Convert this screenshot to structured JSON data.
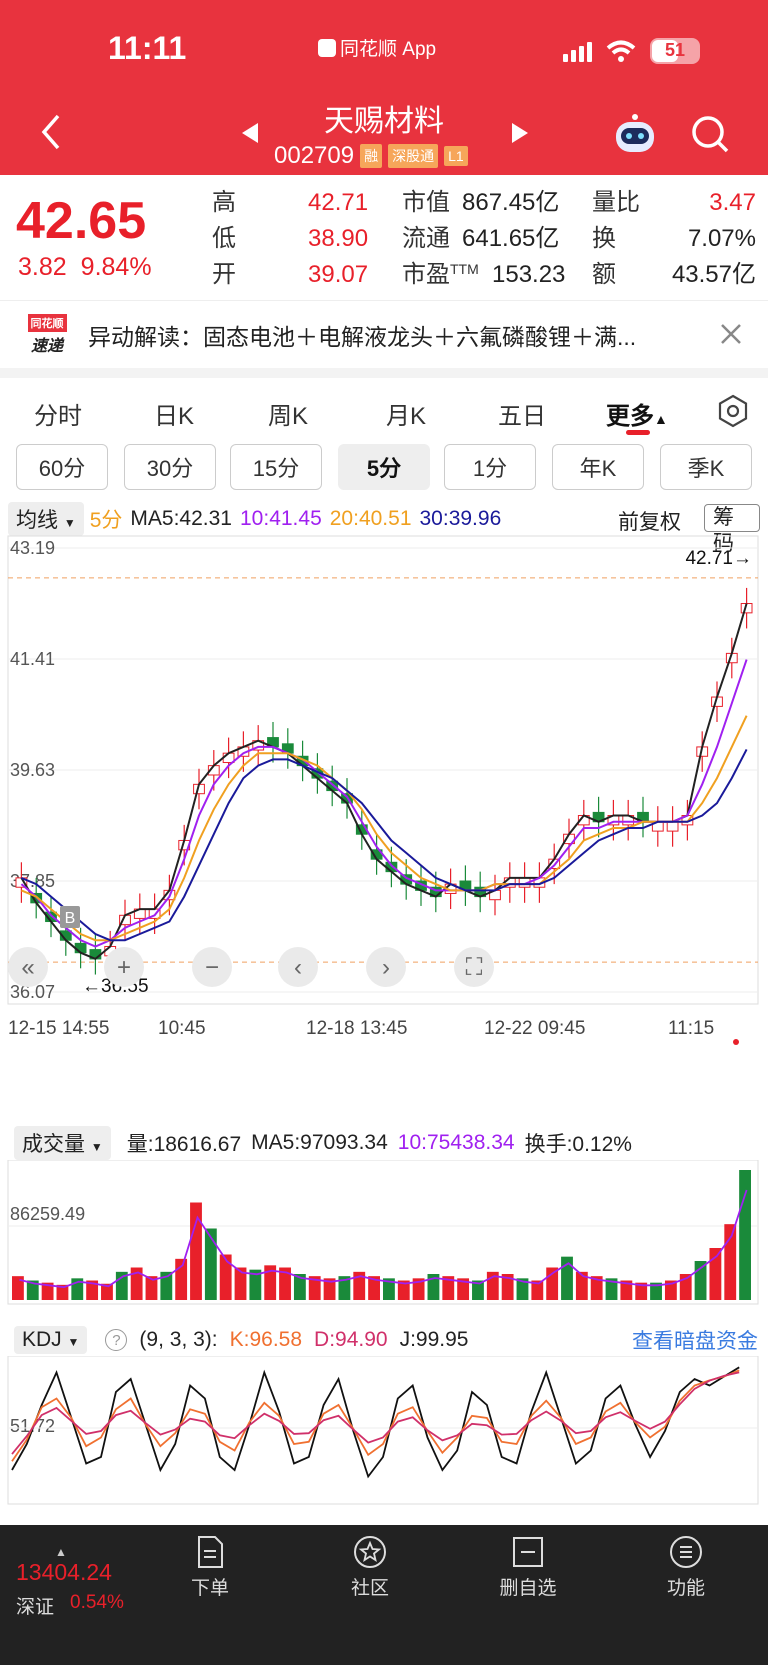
{
  "status": {
    "time": "11:11",
    "app": "同花顺 App",
    "battery": "51"
  },
  "header": {
    "name": "天赐材料",
    "code": "002709",
    "tags": [
      "融",
      "深股通",
      "L1"
    ]
  },
  "quote": {
    "price": "42.65",
    "change": "3.82",
    "change_pct": "9.84%",
    "high_label": "高",
    "high": "42.71",
    "low_label": "低",
    "low": "38.90",
    "open_label": "开",
    "open": "39.07",
    "mktcap_label": "市值",
    "mktcap": "867.45亿",
    "float_label": "流通",
    "float": "641.65亿",
    "pe_label": "市盈",
    "pe_sup": "TTM",
    "pe": "153.23",
    "volratio_label": "量比",
    "volratio": "3.47",
    "turnover_label": "换",
    "turnover": "7.07%",
    "amount_label": "额",
    "amount": "43.57亿"
  },
  "news": {
    "logo_top": "同花顺",
    "logo_bot": "速递",
    "text": "异动解读：固态电池＋电解液龙头＋六氟磷酸锂＋满..."
  },
  "tabs": [
    "分时",
    "日K",
    "周K",
    "月K",
    "五日",
    "更多"
  ],
  "subtabs": [
    "60分",
    "30分",
    "15分",
    "5分",
    "1分",
    "年K",
    "季K"
  ],
  "ma": {
    "selector": "均线",
    "period": "5分",
    "ma5": "MA5:42.31",
    "ma10": "10:41.45",
    "ma20": "20:40.51",
    "ma30": "30:39.96",
    "fq": "前复权",
    "chip": "筹码"
  },
  "colors": {
    "up": "#e8202a",
    "down": "#1a8a3a",
    "ma5": "#222222",
    "ma10": "#a020f0",
    "ma20": "#f0a020",
    "ma30": "#1a1a9a"
  },
  "chart_data": {
    "type": "candlestick",
    "y_ticks": [
      "43.19",
      "41.41",
      "39.63",
      "37.85",
      "36.07"
    ],
    "ylim": [
      36.07,
      43.19
    ],
    "x_ticks": [
      "12-15 14:55",
      "10:45",
      "12-18 13:45",
      "12-22 09:45",
      "11:15"
    ],
    "high_mark": "42.71→",
    "low_mark": "←36.55",
    "ma5_series": [
      37.9,
      37.5,
      37.2,
      36.9,
      36.7,
      36.6,
      36.8,
      37.3,
      37.4,
      37.4,
      37.7,
      38.5,
      39.4,
      39.7,
      39.9,
      40.0,
      40.1,
      40.0,
      39.9,
      39.7,
      39.5,
      39.3,
      39.1,
      38.6,
      38.2,
      38.0,
      37.8,
      37.7,
      37.6,
      37.8,
      37.7,
      37.6,
      37.7,
      37.9,
      37.9,
      37.9,
      38.2,
      38.6,
      38.9,
      38.8,
      38.9,
      38.9,
      38.8,
      38.8,
      38.8,
      38.9,
      40.0,
      40.8,
      41.5,
      42.3
    ],
    "ma10_series": [
      37.8,
      37.6,
      37.3,
      37.1,
      36.9,
      36.8,
      36.9,
      37.1,
      37.2,
      37.3,
      37.6,
      38.2,
      38.9,
      39.4,
      39.7,
      39.9,
      40.0,
      40.0,
      39.9,
      39.8,
      39.6,
      39.4,
      39.2,
      38.8,
      38.4,
      38.1,
      37.9,
      37.8,
      37.7,
      37.7,
      37.7,
      37.7,
      37.8,
      37.8,
      37.8,
      37.9,
      38.1,
      38.4,
      38.7,
      38.7,
      38.8,
      38.8,
      38.8,
      38.8,
      38.8,
      38.9,
      39.4,
      40.0,
      40.7,
      41.4
    ],
    "ma20_series": [
      37.7,
      37.6,
      37.4,
      37.2,
      37.0,
      36.9,
      36.9,
      37.0,
      37.1,
      37.2,
      37.4,
      37.9,
      38.5,
      39.0,
      39.4,
      39.7,
      39.9,
      39.9,
      39.9,
      39.8,
      39.7,
      39.5,
      39.3,
      39.0,
      38.6,
      38.3,
      38.1,
      37.9,
      37.8,
      37.7,
      37.7,
      37.7,
      37.8,
      37.8,
      37.8,
      37.8,
      38.0,
      38.2,
      38.5,
      38.6,
      38.7,
      38.7,
      38.8,
      38.8,
      38.8,
      38.8,
      39.1,
      39.5,
      40.0,
      40.5
    ],
    "ma30_series": [
      37.9,
      37.8,
      37.6,
      37.4,
      37.2,
      37.0,
      36.9,
      36.9,
      37.0,
      37.1,
      37.2,
      37.6,
      38.1,
      38.6,
      39.1,
      39.5,
      39.7,
      39.8,
      39.8,
      39.7,
      39.6,
      39.5,
      39.3,
      39.1,
      38.8,
      38.5,
      38.3,
      38.1,
      37.9,
      37.8,
      37.7,
      37.7,
      37.7,
      37.8,
      37.8,
      37.8,
      37.9,
      38.1,
      38.3,
      38.5,
      38.6,
      38.7,
      38.7,
      38.8,
      38.8,
      38.8,
      38.9,
      39.1,
      39.5,
      39.96
    ]
  },
  "volume": {
    "selector": "成交量",
    "vol": "量:18616.67",
    "ma5": "MA5:97093.34",
    "ma10": "10:75438.34",
    "turnover": "换手:0.12%",
    "tick": "86259.49"
  },
  "volume_data": [
    22,
    18,
    16,
    14,
    20,
    18,
    15,
    26,
    30,
    22,
    26,
    38,
    90,
    66,
    42,
    30,
    28,
    32,
    30,
    24,
    22,
    20,
    22,
    26,
    22,
    20,
    18,
    20,
    24,
    22,
    20,
    18,
    26,
    24,
    20,
    18,
    30,
    40,
    26,
    22,
    20,
    18,
    16,
    16,
    18,
    24,
    36,
    48,
    70,
    120
  ],
  "kdj": {
    "selector": "KDJ",
    "help": "?",
    "params": "(9, 3, 3):",
    "k": "K:96.58",
    "d": "D:94.90",
    "j": "J:99.95",
    "link": "查看暗盘资金",
    "tick": "51.72"
  },
  "kdj_series": [
    20,
    40,
    70,
    95,
    60,
    25,
    30,
    80,
    90,
    55,
    20,
    40,
    85,
    75,
    30,
    20,
    55,
    95,
    65,
    25,
    30,
    70,
    90,
    50,
    15,
    30,
    75,
    85,
    45,
    20,
    35,
    80,
    70,
    30,
    25,
    65,
    95,
    60,
    25,
    35,
    75,
    85,
    55,
    30,
    50,
    80,
    90,
    85,
    92,
    99
  ],
  "bottom": {
    "index_val": "13404.24",
    "index_name": "深证",
    "index_pct": "0.54%",
    "nav": [
      "下单",
      "社区",
      "删自选",
      "功能"
    ]
  },
  "controls": [
    "first-page",
    "zoom-in",
    "zoom-out",
    "prev",
    "next",
    "fullscreen"
  ]
}
